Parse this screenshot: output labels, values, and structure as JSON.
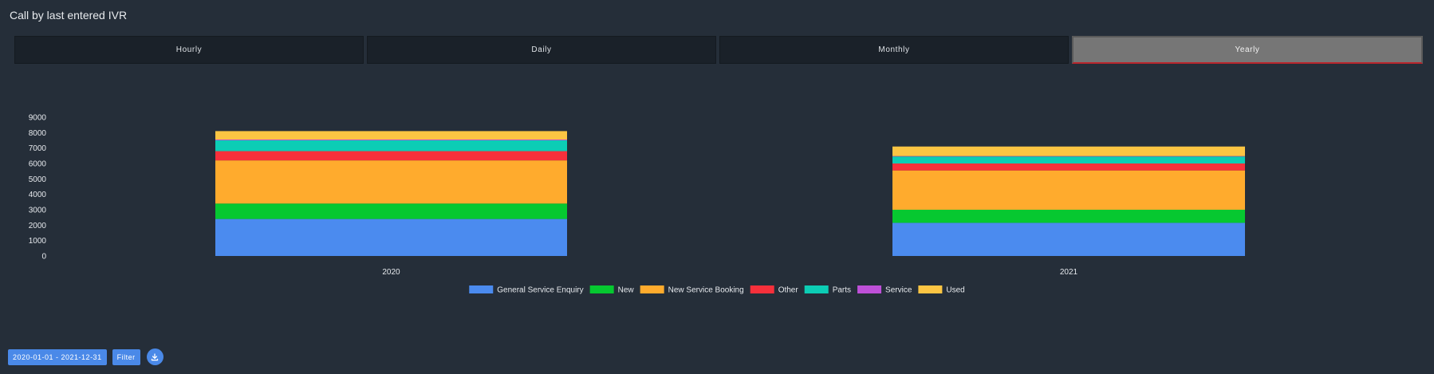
{
  "header": {
    "title": "Call by last entered IVR"
  },
  "tabs": [
    {
      "label": "Hourly",
      "active": false
    },
    {
      "label": "Daily",
      "active": false
    },
    {
      "label": "Monthly",
      "active": false
    },
    {
      "label": "Yearly",
      "active": true
    }
  ],
  "controls": {
    "date_range": "2020-01-01 - 2021-12-31",
    "filter_label": "Filter",
    "download_icon": "download-icon"
  },
  "colors": {
    "background": "#252e39",
    "accent": "#4a89e8",
    "active_tab": "#767676"
  },
  "chart_data": {
    "type": "bar",
    "stacked": true,
    "categories": [
      "2020",
      "2021"
    ],
    "series": [
      {
        "name": "General Service Enquiry",
        "color": "#4b8bef",
        "values": [
          2400,
          2150
        ]
      },
      {
        "name": "New",
        "color": "#06c830",
        "values": [
          1000,
          850
        ]
      },
      {
        "name": "New Service Booking",
        "color": "#ffab2d",
        "values": [
          2800,
          2550
        ]
      },
      {
        "name": "Other",
        "color": "#f7303b",
        "values": [
          600,
          450
        ]
      },
      {
        "name": "Parts",
        "color": "#0ccdb5",
        "values": [
          700,
          450
        ]
      },
      {
        "name": "Service",
        "color": "#be50d8",
        "values": [
          50,
          30
        ]
      },
      {
        "name": "Used",
        "color": "#fcc543",
        "values": [
          550,
          620
        ]
      }
    ],
    "yticks": [
      0,
      1000,
      2000,
      3000,
      4000,
      5000,
      6000,
      7000,
      8000,
      9000
    ],
    "ylim": [
      0,
      9000
    ],
    "grid": false,
    "legend": "bottom",
    "title": "",
    "xlabel": "",
    "ylabel": ""
  }
}
